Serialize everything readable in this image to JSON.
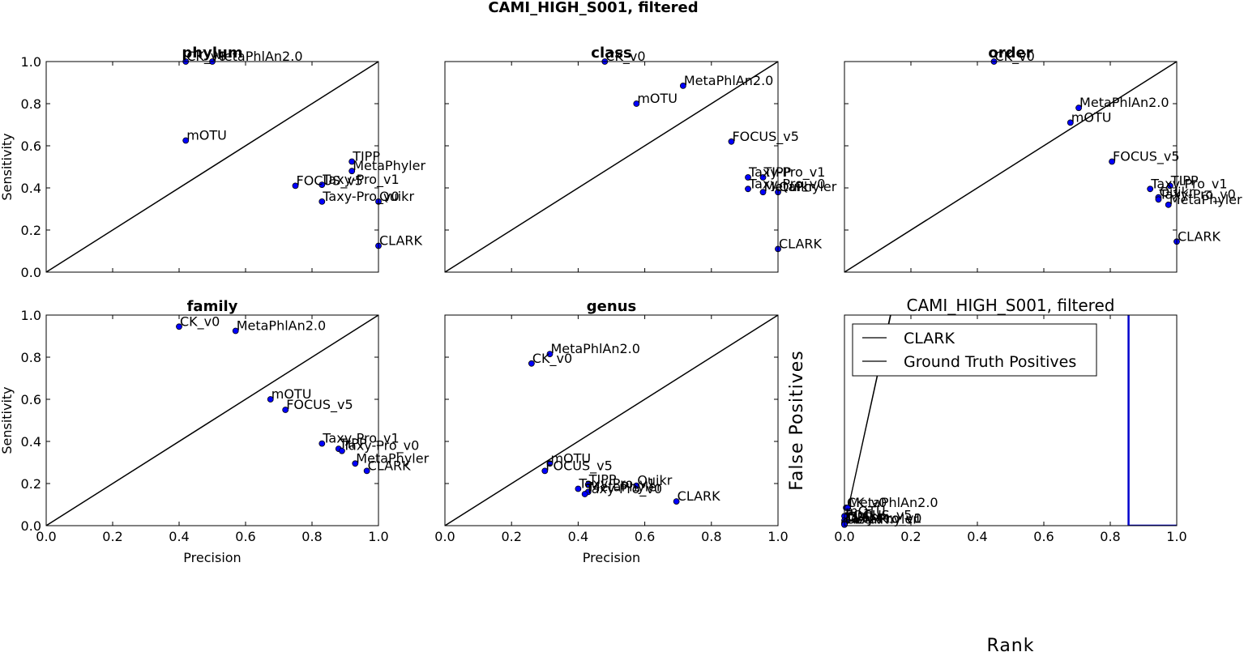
{
  "figure": {
    "suptitle": "CAMI_HIGH_S001, filtered",
    "colors": {
      "point": "#0000ff",
      "threshold_line": "#0000cc",
      "line": "#000000"
    }
  },
  "chart_data": [
    {
      "type": "scatter",
      "title": "phylum",
      "xlabel": "",
      "ylabel": "Sensitivity",
      "xlim": [
        0,
        1
      ],
      "ylim": [
        0,
        1
      ],
      "x_ticks": [
        "0.0",
        "0.2",
        "0.4",
        "0.6",
        "0.8",
        "1.0"
      ],
      "y_ticks": [
        "0.0",
        "0.2",
        "0.4",
        "0.6",
        "0.8",
        "1.0"
      ],
      "show_x_tick_labels": false,
      "show_y_tick_labels": true,
      "diagonal": true,
      "points": [
        {
          "label": "CK_v0",
          "x": 0.42,
          "y": 1.0
        },
        {
          "label": "MetaPhlAn2.0",
          "x": 0.5,
          "y": 1.0
        },
        {
          "label": "mOTU",
          "x": 0.42,
          "y": 0.625
        },
        {
          "label": "TIPP",
          "x": 0.92,
          "y": 0.525
        },
        {
          "label": "MetaPhyler",
          "x": 0.92,
          "y": 0.48
        },
        {
          "label": "FOCUS_v5",
          "x": 0.75,
          "y": 0.41
        },
        {
          "label": "Taxy-Pro_v1",
          "x": 0.83,
          "y": 0.415
        },
        {
          "label": "Taxy-Pro_v0",
          "x": 0.83,
          "y": 0.335
        },
        {
          "label": "Quikr",
          "x": 1.0,
          "y": 0.335
        },
        {
          "label": "CLARK",
          "x": 1.0,
          "y": 0.125
        }
      ]
    },
    {
      "type": "scatter",
      "title": "class",
      "xlabel": "",
      "ylabel": "",
      "xlim": [
        0,
        1
      ],
      "ylim": [
        0,
        1
      ],
      "x_ticks": [
        "0.0",
        "0.2",
        "0.4",
        "0.6",
        "0.8",
        "1.0"
      ],
      "y_ticks": [
        "0.0",
        "0.2",
        "0.4",
        "0.6",
        "0.8",
        "1.0"
      ],
      "show_x_tick_labels": false,
      "show_y_tick_labels": false,
      "diagonal": true,
      "points": [
        {
          "label": "CK_v0",
          "x": 0.48,
          "y": 1.0
        },
        {
          "label": "MetaPhlAn2.0",
          "x": 0.715,
          "y": 0.885
        },
        {
          "label": "mOTU",
          "x": 0.575,
          "y": 0.8
        },
        {
          "label": "FOCUS_v5",
          "x": 0.86,
          "y": 0.62
        },
        {
          "label": "Taxy-Pro_v1",
          "x": 0.91,
          "y": 0.45
        },
        {
          "label": "TIPP",
          "x": 0.955,
          "y": 0.45
        },
        {
          "label": "Taxy-Pro_v0",
          "x": 0.91,
          "y": 0.395
        },
        {
          "label": "MetaPhyler",
          "x": 0.955,
          "y": 0.38
        },
        {
          "label": "Quikr",
          "x": 1.0,
          "y": 0.38
        },
        {
          "label": "CLARK",
          "x": 1.0,
          "y": 0.11
        }
      ]
    },
    {
      "type": "scatter",
      "title": "order",
      "xlabel": "",
      "ylabel": "",
      "xlim": [
        0,
        1
      ],
      "ylim": [
        0,
        1
      ],
      "x_ticks": [
        "0.0",
        "0.2",
        "0.4",
        "0.6",
        "0.8",
        "1.0"
      ],
      "y_ticks": [
        "0.0",
        "0.2",
        "0.4",
        "0.6",
        "0.8",
        "1.0"
      ],
      "show_x_tick_labels": false,
      "show_y_tick_labels": false,
      "diagonal": true,
      "points": [
        {
          "label": "CK_v0",
          "x": 0.45,
          "y": 1.0
        },
        {
          "label": "MetaPhlAn2.0",
          "x": 0.705,
          "y": 0.78
        },
        {
          "label": "mOTU",
          "x": 0.68,
          "y": 0.71
        },
        {
          "label": "FOCUS_v5",
          "x": 0.805,
          "y": 0.525
        },
        {
          "label": "Taxy-Pro_v1",
          "x": 0.92,
          "y": 0.395
        },
        {
          "label": "TIPP",
          "x": 0.98,
          "y": 0.41
        },
        {
          "label": "Quikr",
          "x": 0.945,
          "y": 0.355
        },
        {
          "label": "Taxy-Pro_v0",
          "x": 0.945,
          "y": 0.345
        },
        {
          "label": "MetaPhyler",
          "x": 0.975,
          "y": 0.32
        },
        {
          "label": "CLARK",
          "x": 1.0,
          "y": 0.145
        }
      ]
    },
    {
      "type": "scatter",
      "title": "family",
      "xlabel": "Precision",
      "ylabel": "Sensitivity",
      "xlim": [
        0,
        1
      ],
      "ylim": [
        0,
        1
      ],
      "x_ticks": [
        "0.0",
        "0.2",
        "0.4",
        "0.6",
        "0.8",
        "1.0"
      ],
      "y_ticks": [
        "0.0",
        "0.2",
        "0.4",
        "0.6",
        "0.8",
        "1.0"
      ],
      "show_x_tick_labels": true,
      "show_y_tick_labels": true,
      "diagonal": true,
      "points": [
        {
          "label": "CK_v0",
          "x": 0.4,
          "y": 0.945
        },
        {
          "label": "MetaPhlAn2.0",
          "x": 0.57,
          "y": 0.925
        },
        {
          "label": "mOTU",
          "x": 0.675,
          "y": 0.6
        },
        {
          "label": "FOCUS_v5",
          "x": 0.72,
          "y": 0.55
        },
        {
          "label": "Taxy-Pro_v1",
          "x": 0.83,
          "y": 0.39
        },
        {
          "label": "TIPP",
          "x": 0.88,
          "y": 0.365
        },
        {
          "label": "Taxy-Pro_v0",
          "x": 0.89,
          "y": 0.355
        },
        {
          "label": "MetaPhyler",
          "x": 0.93,
          "y": 0.295
        },
        {
          "label": "CLARK",
          "x": 0.965,
          "y": 0.26
        }
      ]
    },
    {
      "type": "scatter",
      "title": "genus",
      "xlabel": "Precision",
      "ylabel": "",
      "xlim": [
        0,
        1
      ],
      "ylim": [
        0,
        1
      ],
      "x_ticks": [
        "0.0",
        "0.2",
        "0.4",
        "0.6",
        "0.8",
        "1.0"
      ],
      "y_ticks": [
        "0.0",
        "0.2",
        "0.4",
        "0.6",
        "0.8",
        "1.0"
      ],
      "show_x_tick_labels": true,
      "show_y_tick_labels": false,
      "diagonal": true,
      "points": [
        {
          "label": "MetaPhlAn2.0",
          "x": 0.315,
          "y": 0.815
        },
        {
          "label": "CK_v0",
          "x": 0.26,
          "y": 0.77
        },
        {
          "label": "mOTU",
          "x": 0.315,
          "y": 0.295
        },
        {
          "label": "FOCUS_v5",
          "x": 0.3,
          "y": 0.26
        },
        {
          "label": "TIPP",
          "x": 0.43,
          "y": 0.195
        },
        {
          "label": "Quikr",
          "x": 0.575,
          "y": 0.19
        },
        {
          "label": "Taxy-Pro_v1",
          "x": 0.4,
          "y": 0.175
        },
        {
          "label": "MetaPhyler",
          "x": 0.43,
          "y": 0.16
        },
        {
          "label": "Taxy-Pro_v0",
          "x": 0.42,
          "y": 0.15
        },
        {
          "label": "CLARK",
          "x": 0.695,
          "y": 0.115
        }
      ]
    },
    {
      "type": "line",
      "title": "CAMI_HIGH_S001, filtered",
      "xlabel": "Rank",
      "ylabel": "False Positives",
      "xlim": [
        0,
        1
      ],
      "ylim": [
        0,
        1
      ],
      "x_ticks": [
        "0.0",
        "0.2",
        "0.4",
        "0.6",
        "0.8",
        "1.0"
      ],
      "show_x_tick_labels": true,
      "show_y_tick_labels": false,
      "legend": {
        "placement": "top-left",
        "entries": [
          "CLARK",
          "Ground Truth Positives"
        ]
      },
      "series": [
        {
          "name": "CLARK",
          "x": [
            0.0,
            0.145
          ],
          "y": [
            0.0,
            1.05
          ]
        },
        {
          "name": "Ground Truth Positives",
          "x": [
            0.0,
            0.145
          ],
          "y": [
            0.0,
            1.04
          ]
        }
      ],
      "threshold_line": {
        "x": [
          0.855,
          0.855,
          1.0
        ],
        "y": [
          1.0,
          0.0,
          0.0
        ]
      },
      "points": [
        {
          "label": "CK_v0",
          "x": 0.005,
          "y": 0.085
        },
        {
          "label": "MetaPhlAn2.0",
          "x": 0.01,
          "y": 0.085
        },
        {
          "label": "mOTU",
          "x": 0.0,
          "y": 0.045
        },
        {
          "label": "FOCUS_v5",
          "x": 0.0,
          "y": 0.025
        },
        {
          "label": "Quikr",
          "x": 0.005,
          "y": 0.02
        },
        {
          "label": "TIPP",
          "x": 0.0,
          "y": 0.015
        },
        {
          "label": "Taxy-Pro_v1",
          "x": 0.0,
          "y": 0.01
        },
        {
          "label": "Taxy-Pro_v0",
          "x": 0.0,
          "y": 0.01
        },
        {
          "label": "MetaPhyler",
          "x": 0.0,
          "y": 0.005
        },
        {
          "label": "CLARK",
          "x": 0.0,
          "y": 0.005
        }
      ]
    }
  ]
}
